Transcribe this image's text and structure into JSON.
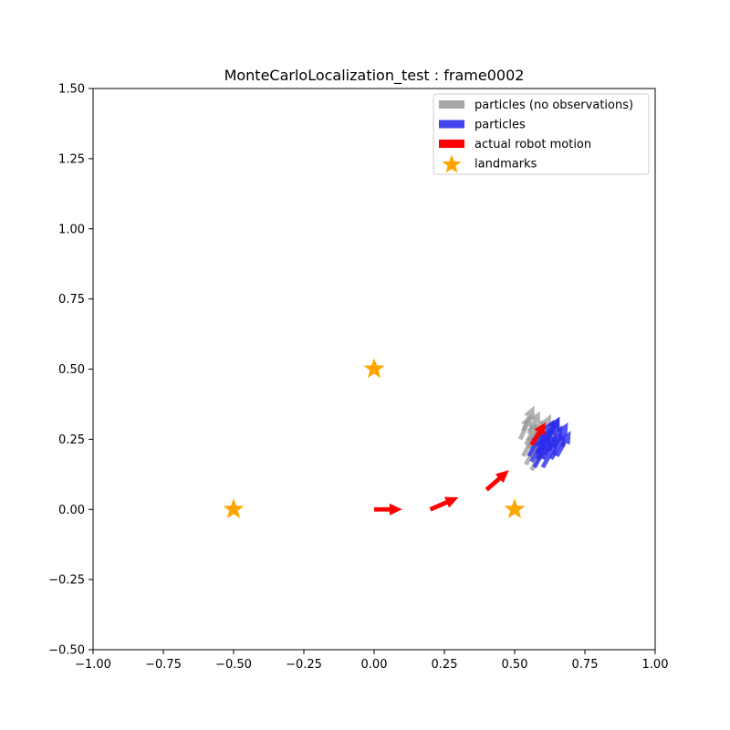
{
  "chart_data": {
    "type": "quiver-scatter",
    "title": "MonteCarloLocalization_test : frame0002",
    "xlabel": "",
    "ylabel": "",
    "xlim": [
      -1.0,
      1.0
    ],
    "ylim": [
      -0.5,
      1.5
    ],
    "x_ticks": [
      -1.0,
      -0.75,
      -0.5,
      -0.25,
      0.0,
      0.25,
      0.5,
      0.75,
      1.0
    ],
    "x_tick_labels": [
      "−1.00",
      "−0.75",
      "−0.50",
      "−0.25",
      "0.00",
      "0.25",
      "0.50",
      "0.75",
      "1.00"
    ],
    "y_ticks": [
      -0.5,
      -0.25,
      0.0,
      0.25,
      0.5,
      0.75,
      1.0,
      1.25,
      1.5
    ],
    "y_tick_labels": [
      "−0.50",
      "−0.25",
      "0.00",
      "0.25",
      "0.50",
      "0.75",
      "1.00",
      "1.25",
      "1.50"
    ],
    "grid": false,
    "legend_position": "top-right",
    "legend": [
      {
        "label": "particles (no observations)",
        "color": "#a6a6a6",
        "kind": "patch"
      },
      {
        "label": "particles",
        "color": "#4444ee",
        "kind": "patch"
      },
      {
        "label": "actual robot motion",
        "color": "#ff0000",
        "kind": "patch"
      },
      {
        "label": "landmarks",
        "color": "#ffa500",
        "kind": "star"
      }
    ],
    "landmarks": {
      "color": "#ffa500",
      "points": [
        [
          -0.5,
          0.0
        ],
        [
          0.0,
          0.5
        ],
        [
          0.5,
          0.0
        ]
      ]
    },
    "robot_motion": {
      "color": "#ff0000",
      "arrows": [
        {
          "x": 0.0,
          "y": 0.0,
          "dx": 0.1,
          "dy": 0.0
        },
        {
          "x": 0.2,
          "y": 0.0,
          "dx": 0.1,
          "dy": 0.043
        },
        {
          "x": 0.4,
          "y": 0.07,
          "dx": 0.08,
          "dy": 0.07
        },
        {
          "x": 0.56,
          "y": 0.23,
          "dx": 0.05,
          "dy": 0.08
        }
      ]
    },
    "particles_no_obs": {
      "color": "#999999",
      "arrows": [
        {
          "x": 0.53,
          "y": 0.19,
          "dx": 0.05,
          "dy": 0.09
        },
        {
          "x": 0.55,
          "y": 0.22,
          "dx": 0.05,
          "dy": 0.1
        },
        {
          "x": 0.52,
          "y": 0.25,
          "dx": 0.04,
          "dy": 0.09
        },
        {
          "x": 0.54,
          "y": 0.16,
          "dx": 0.05,
          "dy": 0.09
        },
        {
          "x": 0.57,
          "y": 0.2,
          "dx": 0.05,
          "dy": 0.09
        },
        {
          "x": 0.53,
          "y": 0.28,
          "dx": 0.04,
          "dy": 0.09
        },
        {
          "x": 0.56,
          "y": 0.14,
          "dx": 0.05,
          "dy": 0.09
        },
        {
          "x": 0.58,
          "y": 0.24,
          "dx": 0.05,
          "dy": 0.1
        },
        {
          "x": 0.55,
          "y": 0.27,
          "dx": 0.04,
          "dy": 0.08
        },
        {
          "x": 0.59,
          "y": 0.18,
          "dx": 0.05,
          "dy": 0.09
        },
        {
          "x": 0.54,
          "y": 0.23,
          "dx": 0.04,
          "dy": 0.08
        },
        {
          "x": 0.6,
          "y": 0.22,
          "dx": 0.05,
          "dy": 0.09
        }
      ]
    },
    "particles": {
      "color": "#2a2aee",
      "arrows": [
        {
          "x": 0.56,
          "y": 0.17,
          "dx": 0.05,
          "dy": 0.09
        },
        {
          "x": 0.58,
          "y": 0.2,
          "dx": 0.05,
          "dy": 0.09
        },
        {
          "x": 0.6,
          "y": 0.18,
          "dx": 0.05,
          "dy": 0.09
        },
        {
          "x": 0.62,
          "y": 0.21,
          "dx": 0.05,
          "dy": 0.09
        },
        {
          "x": 0.59,
          "y": 0.23,
          "dx": 0.05,
          "dy": 0.09
        },
        {
          "x": 0.63,
          "y": 0.18,
          "dx": 0.05,
          "dy": 0.09
        },
        {
          "x": 0.57,
          "y": 0.15,
          "dx": 0.05,
          "dy": 0.09
        },
        {
          "x": 0.61,
          "y": 0.24,
          "dx": 0.05,
          "dy": 0.09
        },
        {
          "x": 0.64,
          "y": 0.22,
          "dx": 0.05,
          "dy": 0.09
        },
        {
          "x": 0.58,
          "y": 0.18,
          "dx": 0.05,
          "dy": 0.09
        },
        {
          "x": 0.6,
          "y": 0.15,
          "dx": 0.05,
          "dy": 0.09
        },
        {
          "x": 0.62,
          "y": 0.25,
          "dx": 0.04,
          "dy": 0.08
        },
        {
          "x": 0.55,
          "y": 0.19,
          "dx": 0.05,
          "dy": 0.09
        },
        {
          "x": 0.65,
          "y": 0.19,
          "dx": 0.05,
          "dy": 0.09
        }
      ]
    }
  }
}
